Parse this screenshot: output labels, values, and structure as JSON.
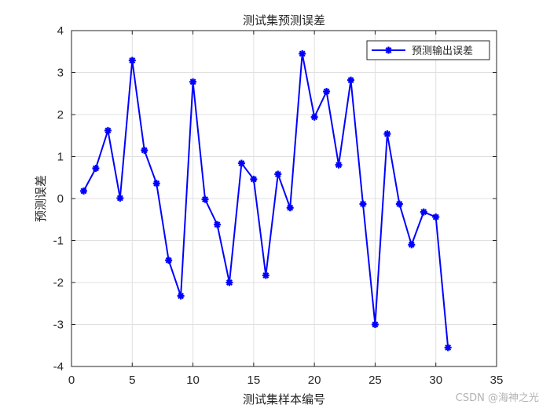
{
  "chart_data": {
    "type": "line",
    "title": "测试集预测误差",
    "xlabel": "测试集样本编号",
    "ylabel": "预测误差",
    "xlim": [
      0,
      35
    ],
    "ylim": [
      -4,
      4
    ],
    "xticks": [
      0,
      5,
      10,
      15,
      20,
      25,
      30,
      35
    ],
    "yticks": [
      -4,
      -3,
      -2,
      -1,
      0,
      1,
      2,
      3,
      4
    ],
    "grid": true,
    "legend_position": "top-right",
    "series": [
      {
        "name": "预测输出误差",
        "color": "#0000ff",
        "marker": "asterisk",
        "x": [
          1,
          2,
          3,
          4,
          5,
          6,
          7,
          8,
          9,
          10,
          11,
          12,
          13,
          14,
          15,
          16,
          17,
          18,
          19,
          20,
          21,
          22,
          23,
          24,
          25,
          26,
          27,
          28,
          29,
          30,
          31
        ],
        "values": [
          0.18,
          0.72,
          1.62,
          0.01,
          3.29,
          1.15,
          0.36,
          -1.47,
          -2.32,
          2.78,
          -0.02,
          -0.62,
          -2.0,
          0.84,
          0.46,
          -1.83,
          0.58,
          -0.22,
          3.45,
          1.94,
          2.55,
          0.8,
          2.82,
          -0.13,
          -3.0,
          1.54,
          -0.13,
          -1.1,
          -0.32,
          -0.44,
          -3.55
        ]
      }
    ]
  },
  "watermark": "CSDN @海神之光"
}
